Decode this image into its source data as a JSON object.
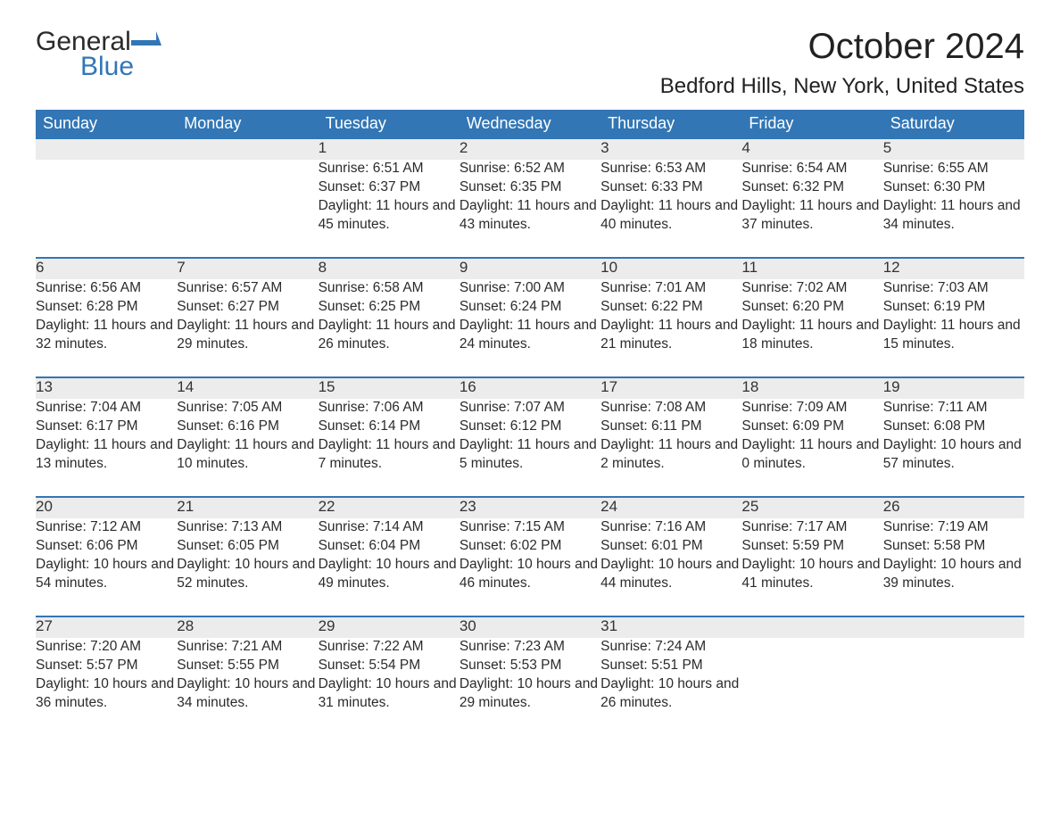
{
  "brand": {
    "word1": "General",
    "word2": "Blue"
  },
  "colors": {
    "accent": "#3276b5",
    "header_bg": "#3276b5",
    "header_text": "#ffffff",
    "daynum_bg": "#ececec",
    "daynum_border": "#3276b5",
    "body_text": "#2b2b2b",
    "page_bg": "#ffffff"
  },
  "typography": {
    "title_fontsize": 40,
    "subtitle_fontsize": 24,
    "header_fontsize": 18,
    "daynum_fontsize": 17,
    "cell_fontsize": 15.5,
    "font_family": "Arial"
  },
  "title": "October 2024",
  "subtitle": "Bedford Hills, New York, United States",
  "day_headers": [
    "Sunday",
    "Monday",
    "Tuesday",
    "Wednesday",
    "Thursday",
    "Friday",
    "Saturday"
  ],
  "weeks": [
    {
      "nums": [
        "",
        "",
        "1",
        "2",
        "3",
        "4",
        "5"
      ],
      "cells": [
        "",
        "",
        "Sunrise: 6:51 AM\nSunset: 6:37 PM\nDaylight: 11 hours and 45 minutes.",
        "Sunrise: 6:52 AM\nSunset: 6:35 PM\nDaylight: 11 hours and 43 minutes.",
        "Sunrise: 6:53 AM\nSunset: 6:33 PM\nDaylight: 11 hours and 40 minutes.",
        "Sunrise: 6:54 AM\nSunset: 6:32 PM\nDaylight: 11 hours and 37 minutes.",
        "Sunrise: 6:55 AM\nSunset: 6:30 PM\nDaylight: 11 hours and 34 minutes."
      ]
    },
    {
      "nums": [
        "6",
        "7",
        "8",
        "9",
        "10",
        "11",
        "12"
      ],
      "cells": [
        "Sunrise: 6:56 AM\nSunset: 6:28 PM\nDaylight: 11 hours and 32 minutes.",
        "Sunrise: 6:57 AM\nSunset: 6:27 PM\nDaylight: 11 hours and 29 minutes.",
        "Sunrise: 6:58 AM\nSunset: 6:25 PM\nDaylight: 11 hours and 26 minutes.",
        "Sunrise: 7:00 AM\nSunset: 6:24 PM\nDaylight: 11 hours and 24 minutes.",
        "Sunrise: 7:01 AM\nSunset: 6:22 PM\nDaylight: 11 hours and 21 minutes.",
        "Sunrise: 7:02 AM\nSunset: 6:20 PM\nDaylight: 11 hours and 18 minutes.",
        "Sunrise: 7:03 AM\nSunset: 6:19 PM\nDaylight: 11 hours and 15 minutes."
      ]
    },
    {
      "nums": [
        "13",
        "14",
        "15",
        "16",
        "17",
        "18",
        "19"
      ],
      "cells": [
        "Sunrise: 7:04 AM\nSunset: 6:17 PM\nDaylight: 11 hours and 13 minutes.",
        "Sunrise: 7:05 AM\nSunset: 6:16 PM\nDaylight: 11 hours and 10 minutes.",
        "Sunrise: 7:06 AM\nSunset: 6:14 PM\nDaylight: 11 hours and 7 minutes.",
        "Sunrise: 7:07 AM\nSunset: 6:12 PM\nDaylight: 11 hours and 5 minutes.",
        "Sunrise: 7:08 AM\nSunset: 6:11 PM\nDaylight: 11 hours and 2 minutes.",
        "Sunrise: 7:09 AM\nSunset: 6:09 PM\nDaylight: 11 hours and 0 minutes.",
        "Sunrise: 7:11 AM\nSunset: 6:08 PM\nDaylight: 10 hours and 57 minutes."
      ]
    },
    {
      "nums": [
        "20",
        "21",
        "22",
        "23",
        "24",
        "25",
        "26"
      ],
      "cells": [
        "Sunrise: 7:12 AM\nSunset: 6:06 PM\nDaylight: 10 hours and 54 minutes.",
        "Sunrise: 7:13 AM\nSunset: 6:05 PM\nDaylight: 10 hours and 52 minutes.",
        "Sunrise: 7:14 AM\nSunset: 6:04 PM\nDaylight: 10 hours and 49 minutes.",
        "Sunrise: 7:15 AM\nSunset: 6:02 PM\nDaylight: 10 hours and 46 minutes.",
        "Sunrise: 7:16 AM\nSunset: 6:01 PM\nDaylight: 10 hours and 44 minutes.",
        "Sunrise: 7:17 AM\nSunset: 5:59 PM\nDaylight: 10 hours and 41 minutes.",
        "Sunrise: 7:19 AM\nSunset: 5:58 PM\nDaylight: 10 hours and 39 minutes."
      ]
    },
    {
      "nums": [
        "27",
        "28",
        "29",
        "30",
        "31",
        "",
        ""
      ],
      "cells": [
        "Sunrise: 7:20 AM\nSunset: 5:57 PM\nDaylight: 10 hours and 36 minutes.",
        "Sunrise: 7:21 AM\nSunset: 5:55 PM\nDaylight: 10 hours and 34 minutes.",
        "Sunrise: 7:22 AM\nSunset: 5:54 PM\nDaylight: 10 hours and 31 minutes.",
        "Sunrise: 7:23 AM\nSunset: 5:53 PM\nDaylight: 10 hours and 29 minutes.",
        "Sunrise: 7:24 AM\nSunset: 5:51 PM\nDaylight: 10 hours and 26 minutes.",
        "",
        ""
      ]
    }
  ]
}
